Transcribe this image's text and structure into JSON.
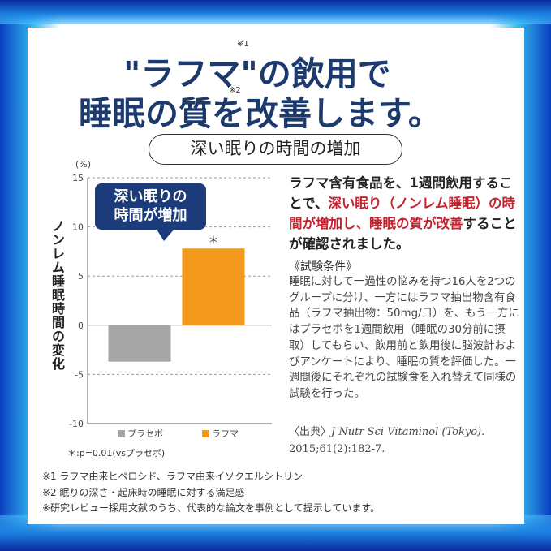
{
  "header": {
    "line1": "\"ラフマ\"の飲用で",
    "line2": "睡眠の質を改善します。",
    "sup1": "※1",
    "sup2": "※2"
  },
  "subtitle": "深い眠りの時間の増加",
  "callout": {
    "line1": "深い眠りの",
    "line2": "時間が増加"
  },
  "chart_data": {
    "type": "bar",
    "categories": [
      "プラセボ",
      "ラフマ"
    ],
    "values": [
      -3.7,
      7.8
    ],
    "colors": [
      "#a6a6a6",
      "#f39a1c"
    ],
    "unit": "(%)",
    "ylabel": "ノンレム睡眠時間の変化",
    "ylim": [
      -10,
      15
    ],
    "yticks": [
      "15",
      "10",
      "5",
      "0",
      "-5",
      "-10"
    ],
    "grid": true,
    "significance_mark": "＊",
    "significance_note": "＊:p=0.01(vsプラセボ)",
    "legend_position": "bottom"
  },
  "result": {
    "p1": "ラフマ含有食品を、1週間飲用することで、",
    "hl1": "深い眠り（ノンレム睡眠）の時間が増加し、睡眠の質が改善",
    "p2": "することが確認されました。"
  },
  "conditions": {
    "title": "《試験条件》",
    "body": "睡眠に対して一過性の悩みを持つ16人を2つのグループに分け、一方にはラフマ抽出物含有食品（ラフマ抽出物：50mg/日）を、もう一方にはプラセボを1週間飲用（睡眠の30分前に摂取）してもらい、飲用前と飲用後に脳波計およびアンケートにより、睡眠の質を評価した。一週間後にそれぞれの試験食を入れ替えて同様の試験を行った。"
  },
  "source": {
    "label": "〈出典〉",
    "journal": "J Nutr Sci Vitaminol (Tokyo).",
    "citation": "2015;61(2):182-7."
  },
  "footnotes": [
    "※1 ラフマ由来ヒペロシド、ラフマ由来イソクエルシトリン",
    "※2 眠りの深さ・起床時の睡眠に対する満足感",
    "※研究レビュー採用文献のうち、代表的な論文を事例として提示しています。"
  ]
}
